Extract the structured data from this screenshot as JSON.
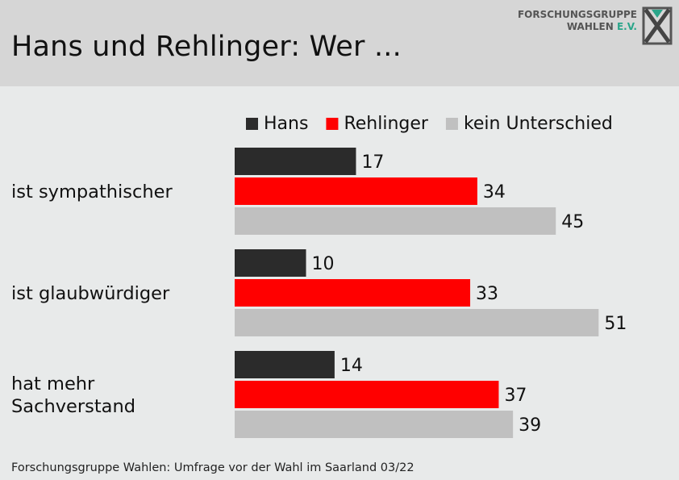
{
  "header": {
    "title": "Hans und Rehlinger: Wer ...",
    "logo_line1": "FORSCHUNGSGRUPPE",
    "logo_line2_main": "WAHLEN",
    "logo_line2_suffix": "E.V."
  },
  "source": "Forschungsgruppe Wahlen: Umfrage vor der Wahl im Saarland 03/22",
  "colors": {
    "header_bg": "#d6d6d6",
    "page_bg": "#e8eaea",
    "hans": "#2b2b2b",
    "rehlinger": "#ff0000",
    "kein_unterschied": "#c0c0c0",
    "logo_accent": "#2aa58a"
  },
  "chart_data": {
    "type": "bar",
    "orientation": "horizontal",
    "title": "Hans und Rehlinger: Wer ...",
    "categories": [
      [
        "ist sympathischer"
      ],
      [
        "ist glaubwürdiger"
      ],
      [
        "hat mehr",
        "Sachverstand"
      ]
    ],
    "series": [
      {
        "name": "Hans",
        "color": "#2b2b2b",
        "values": [
          17,
          10,
          14
        ]
      },
      {
        "name": "Rehlinger",
        "color": "#ff0000",
        "values": [
          34,
          33,
          37
        ]
      },
      {
        "name": "kein Unterschied",
        "color": "#c0c0c0",
        "values": [
          45,
          51,
          39
        ]
      }
    ],
    "xlim": [
      0,
      51
    ],
    "unit": "percent",
    "data_labels": true,
    "grid": false,
    "legend_position": "top"
  }
}
